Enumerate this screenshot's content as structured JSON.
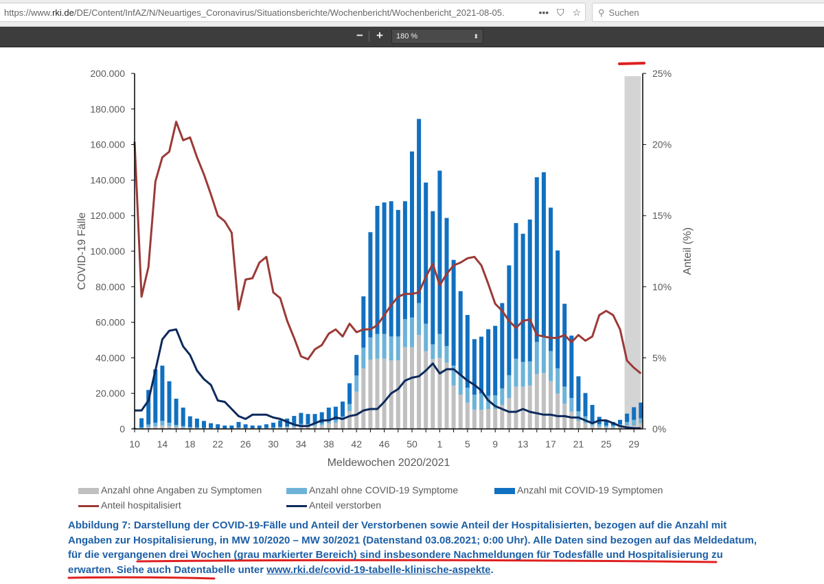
{
  "browser": {
    "url_prefix": "https://www.",
    "url_host": "rki.de",
    "url_path": "/DE/Content/InfAZ/N/Neuartiges_Coronavirus/Situationsberichte/Wochenbericht/Wochenbericht_2021-08-05.",
    "more_icon": "•••",
    "search_placeholder": "Suchen"
  },
  "pdf_toolbar": {
    "zoom_out": "−",
    "zoom_in": "+",
    "zoom_value": "180 %"
  },
  "colors": {
    "grey": "#c0c0c0",
    "light_blue": "#6db3d8",
    "dark_blue": "#1170c0",
    "hosp_line": "#9b3a36",
    "death_line": "#0d2a5c",
    "caption": "#1d5fa6",
    "annotation": "#e02020"
  },
  "legend": {
    "grey": "Anzahl ohne Angaben zu Symptomen",
    "light": "Anzahl ohne COVID-19 Symptome",
    "dark": "Anzahl mit COVID-19 Symptomen",
    "hosp": "Anteil hospitalisiert",
    "death": "Anteil verstorben"
  },
  "caption": {
    "part1": "Abbildung 7: Darstellung der COVID-19-Fälle und Anteil der Verstorbenen sowie Anteil der Hospitalisierten, bezogen auf die Anzahl mit Angaben zur Hospitalisierung, in MW 10/2020 – MW 30/2021 (Datenstand 03.08.2021; 0:00 Uhr). Alle Daten sind bezogen auf das Meldedatum, ",
    "part2": "für die vergangenen drei Wochen (grau markierter Bereich) sind insbesondere Nachmeldungen für Todesfälle und Hospitalisierung zu erwarten.",
    "part3": " Siehe auch Datentabelle unter ",
    "link": "www.rki.de/covid-19-tabelle-klinische-aspekte",
    "part4": "."
  },
  "chart_data": {
    "type": "bar",
    "stacked": true,
    "xlabel": "Meldewochen 2020/2021",
    "ylabel": "COVID-19 Fälle",
    "ylabel_right": "Anteil (%)",
    "ylim": [
      0,
      200000
    ],
    "ylim_right": [
      0,
      25
    ],
    "yticks": [
      "0",
      "20.000",
      "40.000",
      "60.000",
      "80.000",
      "100.000",
      "120.000",
      "140.000",
      "160.000",
      "180.000",
      "200.000"
    ],
    "yticks_right": [
      "0%",
      "5%",
      "10%",
      "15%",
      "20%",
      "25%"
    ],
    "highlight_weeks": [
      "28",
      "29",
      "30"
    ],
    "categories": [
      "10",
      "11",
      "12",
      "13",
      "14",
      "15",
      "16",
      "17",
      "18",
      "19",
      "20",
      "21",
      "22",
      "23",
      "24",
      "25",
      "26",
      "27",
      "28",
      "29",
      "30",
      "31",
      "32",
      "33",
      "34",
      "35",
      "36",
      "37",
      "38",
      "39",
      "40",
      "41",
      "42",
      "43",
      "44",
      "45",
      "46",
      "47",
      "48",
      "49",
      "50",
      "51",
      "52",
      "53",
      "1",
      "2",
      "3",
      "4",
      "5",
      "6",
      "7",
      "8",
      "9",
      "10",
      "11",
      "12",
      "13",
      "14",
      "15",
      "16",
      "17",
      "18",
      "19",
      "20",
      "21",
      "22",
      "23",
      "24",
      "25",
      "26",
      "27",
      "28",
      "29",
      "30"
    ],
    "series": [
      {
        "name": "Anzahl ohne Angaben zu Symptomen",
        "kind": "bar",
        "axis": "left",
        "values": [
          0,
          300,
          1000,
          1500,
          2000,
          1500,
          1000,
          800,
          500,
          400,
          300,
          200,
          200,
          200,
          200,
          400,
          300,
          200,
          200,
          300,
          400,
          600,
          800,
          1000,
          1500,
          1500,
          1600,
          2000,
          3000,
          3500,
          5000,
          10000,
          21000,
          34000,
          39000,
          39500,
          39500,
          38600,
          38600,
          46000,
          46000,
          52800,
          43800,
          39300,
          39900,
          37300,
          24500,
          19300,
          14800,
          10900,
          10700,
          11200,
          11200,
          13500,
          17400,
          23800,
          23800,
          24500,
          30900,
          31500,
          27000,
          19900,
          14200,
          9700,
          4500,
          3200,
          1900,
          1300,
          900,
          900,
          1300,
          1900,
          1900,
          3200
        ]
      },
      {
        "name": "Anzahl ohne COVID-19 Symptome",
        "kind": "bar",
        "axis": "left",
        "values": [
          100,
          500,
          1500,
          2000,
          2500,
          2000,
          1200,
          800,
          500,
          400,
          300,
          300,
          200,
          100,
          100,
          300,
          200,
          200,
          200,
          200,
          400,
          500,
          600,
          1000,
          1300,
          1100,
          1200,
          1200,
          1500,
          1500,
          2000,
          4000,
          9000,
          11700,
          12500,
          13900,
          13900,
          13400,
          13400,
          15800,
          16700,
          18000,
          15400,
          8300,
          13500,
          9300,
          11100,
          10900,
          8400,
          8400,
          9200,
          7500,
          7700,
          9300,
          12800,
          15700,
          13900,
          13500,
          18000,
          20000,
          16800,
          14200,
          9600,
          7700,
          5400,
          3900,
          2000,
          1300,
          1000,
          1000,
          1300,
          2000,
          3200,
          2800
        ]
      },
      {
        "name": "Anzahl mit COVID-19 Symptomen",
        "kind": "bar",
        "axis": "left",
        "values": [
          400,
          5200,
          19400,
          30000,
          31100,
          23300,
          14800,
          10400,
          6100,
          5000,
          3900,
          2700,
          2200,
          1600,
          1600,
          3200,
          2100,
          1500,
          1500,
          2100,
          2700,
          3700,
          4400,
          5300,
          6200,
          5800,
          5600,
          6200,
          7500,
          7500,
          8400,
          11700,
          11600,
          28900,
          59200,
          72100,
          74000,
          76100,
          71200,
          66300,
          93400,
          103600,
          79400,
          74900,
          91900,
          72100,
          59500,
          47300,
          40900,
          31200,
          32000,
          37400,
          39100,
          48000,
          61800,
          76300,
          72100,
          79800,
          92700,
          92900,
          80700,
          66300,
          46600,
          35100,
          19700,
          13100,
          9600,
          4200,
          2600,
          2000,
          2500,
          4700,
          7100,
          8800
        ]
      },
      {
        "name": "Anteil hospitalisiert",
        "kind": "line",
        "axis": "right",
        "values": [
          20.2,
          9.3,
          11.4,
          17.4,
          19.1,
          19.5,
          21.6,
          20.3,
          20.5,
          19.1,
          17.9,
          16.5,
          15.0,
          14.6,
          13.8,
          8.4,
          10.5,
          10.6,
          11.7,
          12.1,
          9.6,
          9.2,
          7.6,
          6.4,
          5.1,
          4.9,
          5.6,
          5.9,
          6.7,
          7.0,
          6.5,
          7.4,
          6.8,
          7.0,
          7.0,
          7.3,
          8.0,
          8.7,
          9.3,
          9.5,
          9.5,
          9.6,
          10.7,
          11.6,
          10.1,
          10.9,
          11.5,
          11.7,
          12.0,
          12.1,
          11.5,
          10.2,
          8.8,
          8.3,
          7.6,
          7.1,
          7.6,
          7.7,
          6.6,
          6.5,
          6.4,
          6.4,
          6.6,
          6.1,
          6.6,
          6.2,
          6.5,
          8.0,
          8.3,
          8.0,
          7.0,
          4.8,
          4.3,
          3.9
        ]
      },
      {
        "name": "Anteil verstorben",
        "kind": "line",
        "axis": "right",
        "values": [
          1.3,
          1.3,
          2.0,
          4.1,
          6.3,
          6.9,
          7.0,
          5.8,
          5.2,
          4.1,
          3.5,
          3.1,
          2.0,
          1.9,
          1.4,
          0.9,
          0.7,
          1.0,
          1.0,
          1.0,
          0.8,
          0.7,
          0.5,
          0.3,
          0.2,
          0.2,
          0.4,
          0.6,
          0.6,
          0.8,
          0.7,
          0.9,
          1.0,
          1.3,
          1.4,
          1.4,
          1.9,
          2.5,
          2.8,
          3.4,
          3.6,
          3.7,
          4.1,
          4.6,
          3.9,
          4.2,
          4.2,
          3.8,
          3.4,
          3.1,
          2.7,
          2.0,
          1.6,
          1.4,
          1.2,
          1.2,
          1.4,
          1.2,
          1.1,
          1.0,
          1.0,
          0.9,
          0.9,
          0.8,
          0.8,
          0.6,
          0.4,
          0.6,
          0.6,
          0.4,
          0.2,
          0.1,
          0.05,
          0.05
        ]
      }
    ],
    "legend_position": "bottom"
  }
}
